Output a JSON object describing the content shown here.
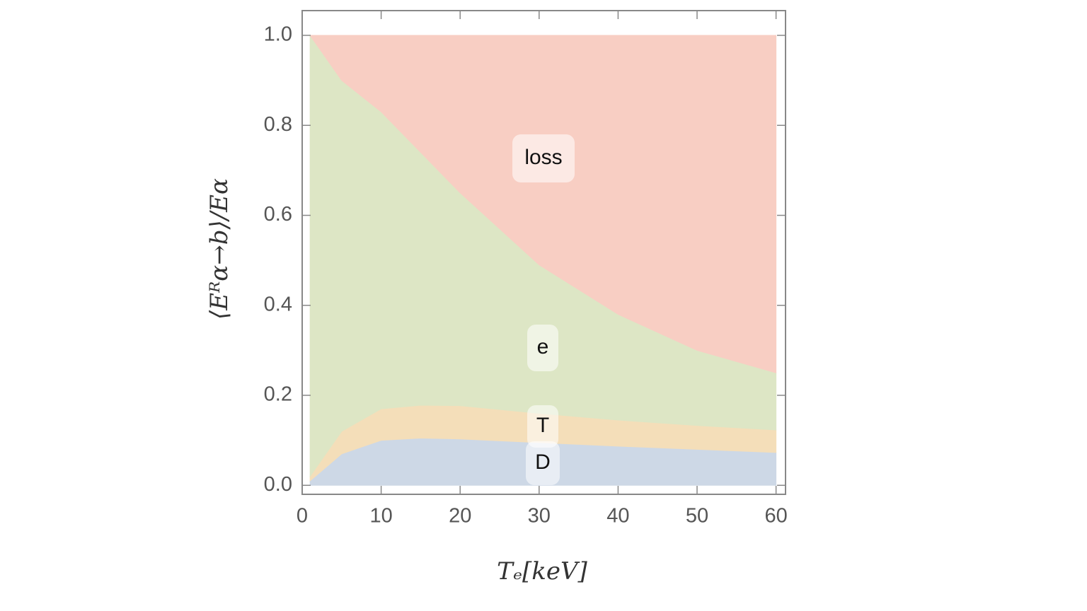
{
  "chart_data": {
    "type": "area",
    "x": [
      1,
      5,
      10,
      15,
      20,
      30,
      40,
      50,
      60
    ],
    "series": [
      {
        "name": "D",
        "color": "#cdd8e6",
        "values": [
          0.01,
          0.07,
          0.1,
          0.105,
          0.103,
          0.095,
          0.087,
          0.08,
          0.073
        ]
      },
      {
        "name": "T",
        "color": "#f4deb9",
        "values": [
          0.01,
          0.05,
          0.07,
          0.073,
          0.074,
          0.065,
          0.058,
          0.053,
          0.05
        ]
      },
      {
        "name": "e",
        "color": "#dde6c5",
        "values": [
          0.98,
          0.78,
          0.66,
          0.562,
          0.473,
          0.33,
          0.235,
          0.167,
          0.127
        ]
      },
      {
        "name": "loss",
        "color": "#f8cec3",
        "values": [
          0,
          0.1,
          0.17,
          0.26,
          0.35,
          0.51,
          0.62,
          0.7,
          0.75
        ]
      }
    ],
    "x_label": "Tₑ[keV]",
    "y_label": "⟨Eᴿα→b⟩/Eα",
    "xlim": [
      0,
      61.2
    ],
    "ylim": [
      -0.02,
      1.055
    ],
    "xticks": [
      0,
      10,
      20,
      30,
      40,
      50,
      60
    ],
    "yticks": [
      {
        "value": 0,
        "label": "0.0"
      },
      0.2,
      0.4,
      0.6,
      0.8,
      {
        "value": 1,
        "label": "1.0"
      }
    ]
  }
}
